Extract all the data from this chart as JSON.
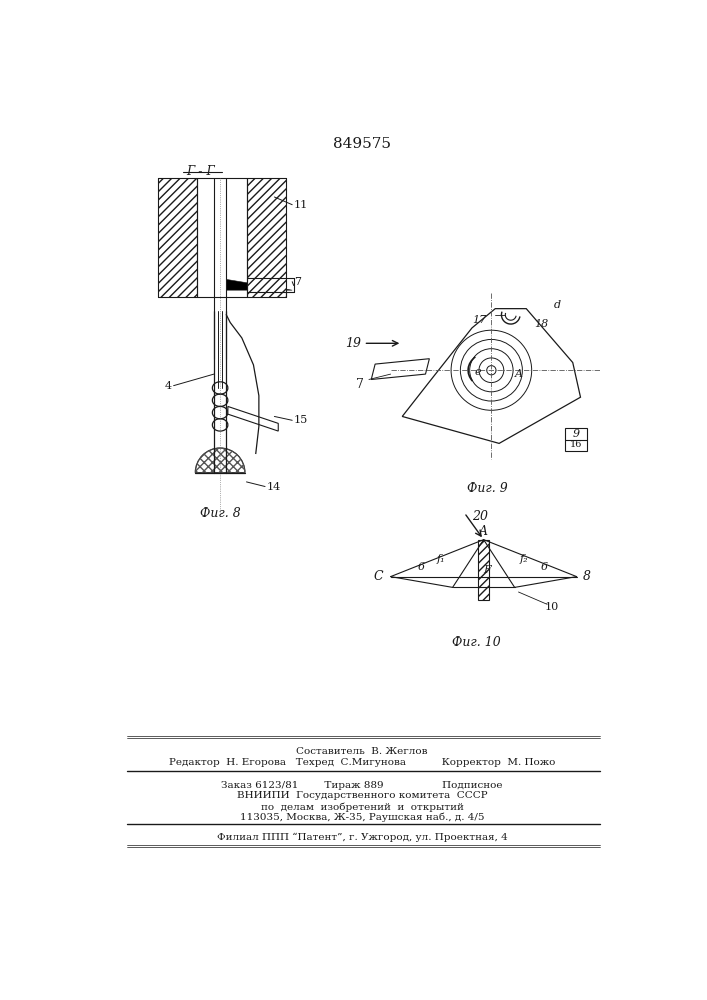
{
  "title": "849575",
  "fig8_label": "Фиг. 8",
  "fig9_label": "Фиг. 9",
  "fig10_label": "Фиг. 10",
  "section_label": "Г - Г",
  "footer_line1": "Составитель  В. Жеглов",
  "footer_line2": "Редактор  Н. Егорова   Техред  С.Мигунова           Корректор  М. Пожо",
  "footer_line3": "Заказ 6123/81        Тираж 889                  Подписное",
  "footer_line4": "ВНИИПИ  Государственного комитета  СССР",
  "footer_line5": "по  делам  изобретений  и  открытий",
  "footer_line6": "113035, Москва, Ж-35, Раушская наб., д. 4/5",
  "footer_line7": "Филиал ППП “Патент”, г. Ужгород, ул. Проектная, 4",
  "bg_color": "#ffffff",
  "line_color": "#1a1a1a"
}
